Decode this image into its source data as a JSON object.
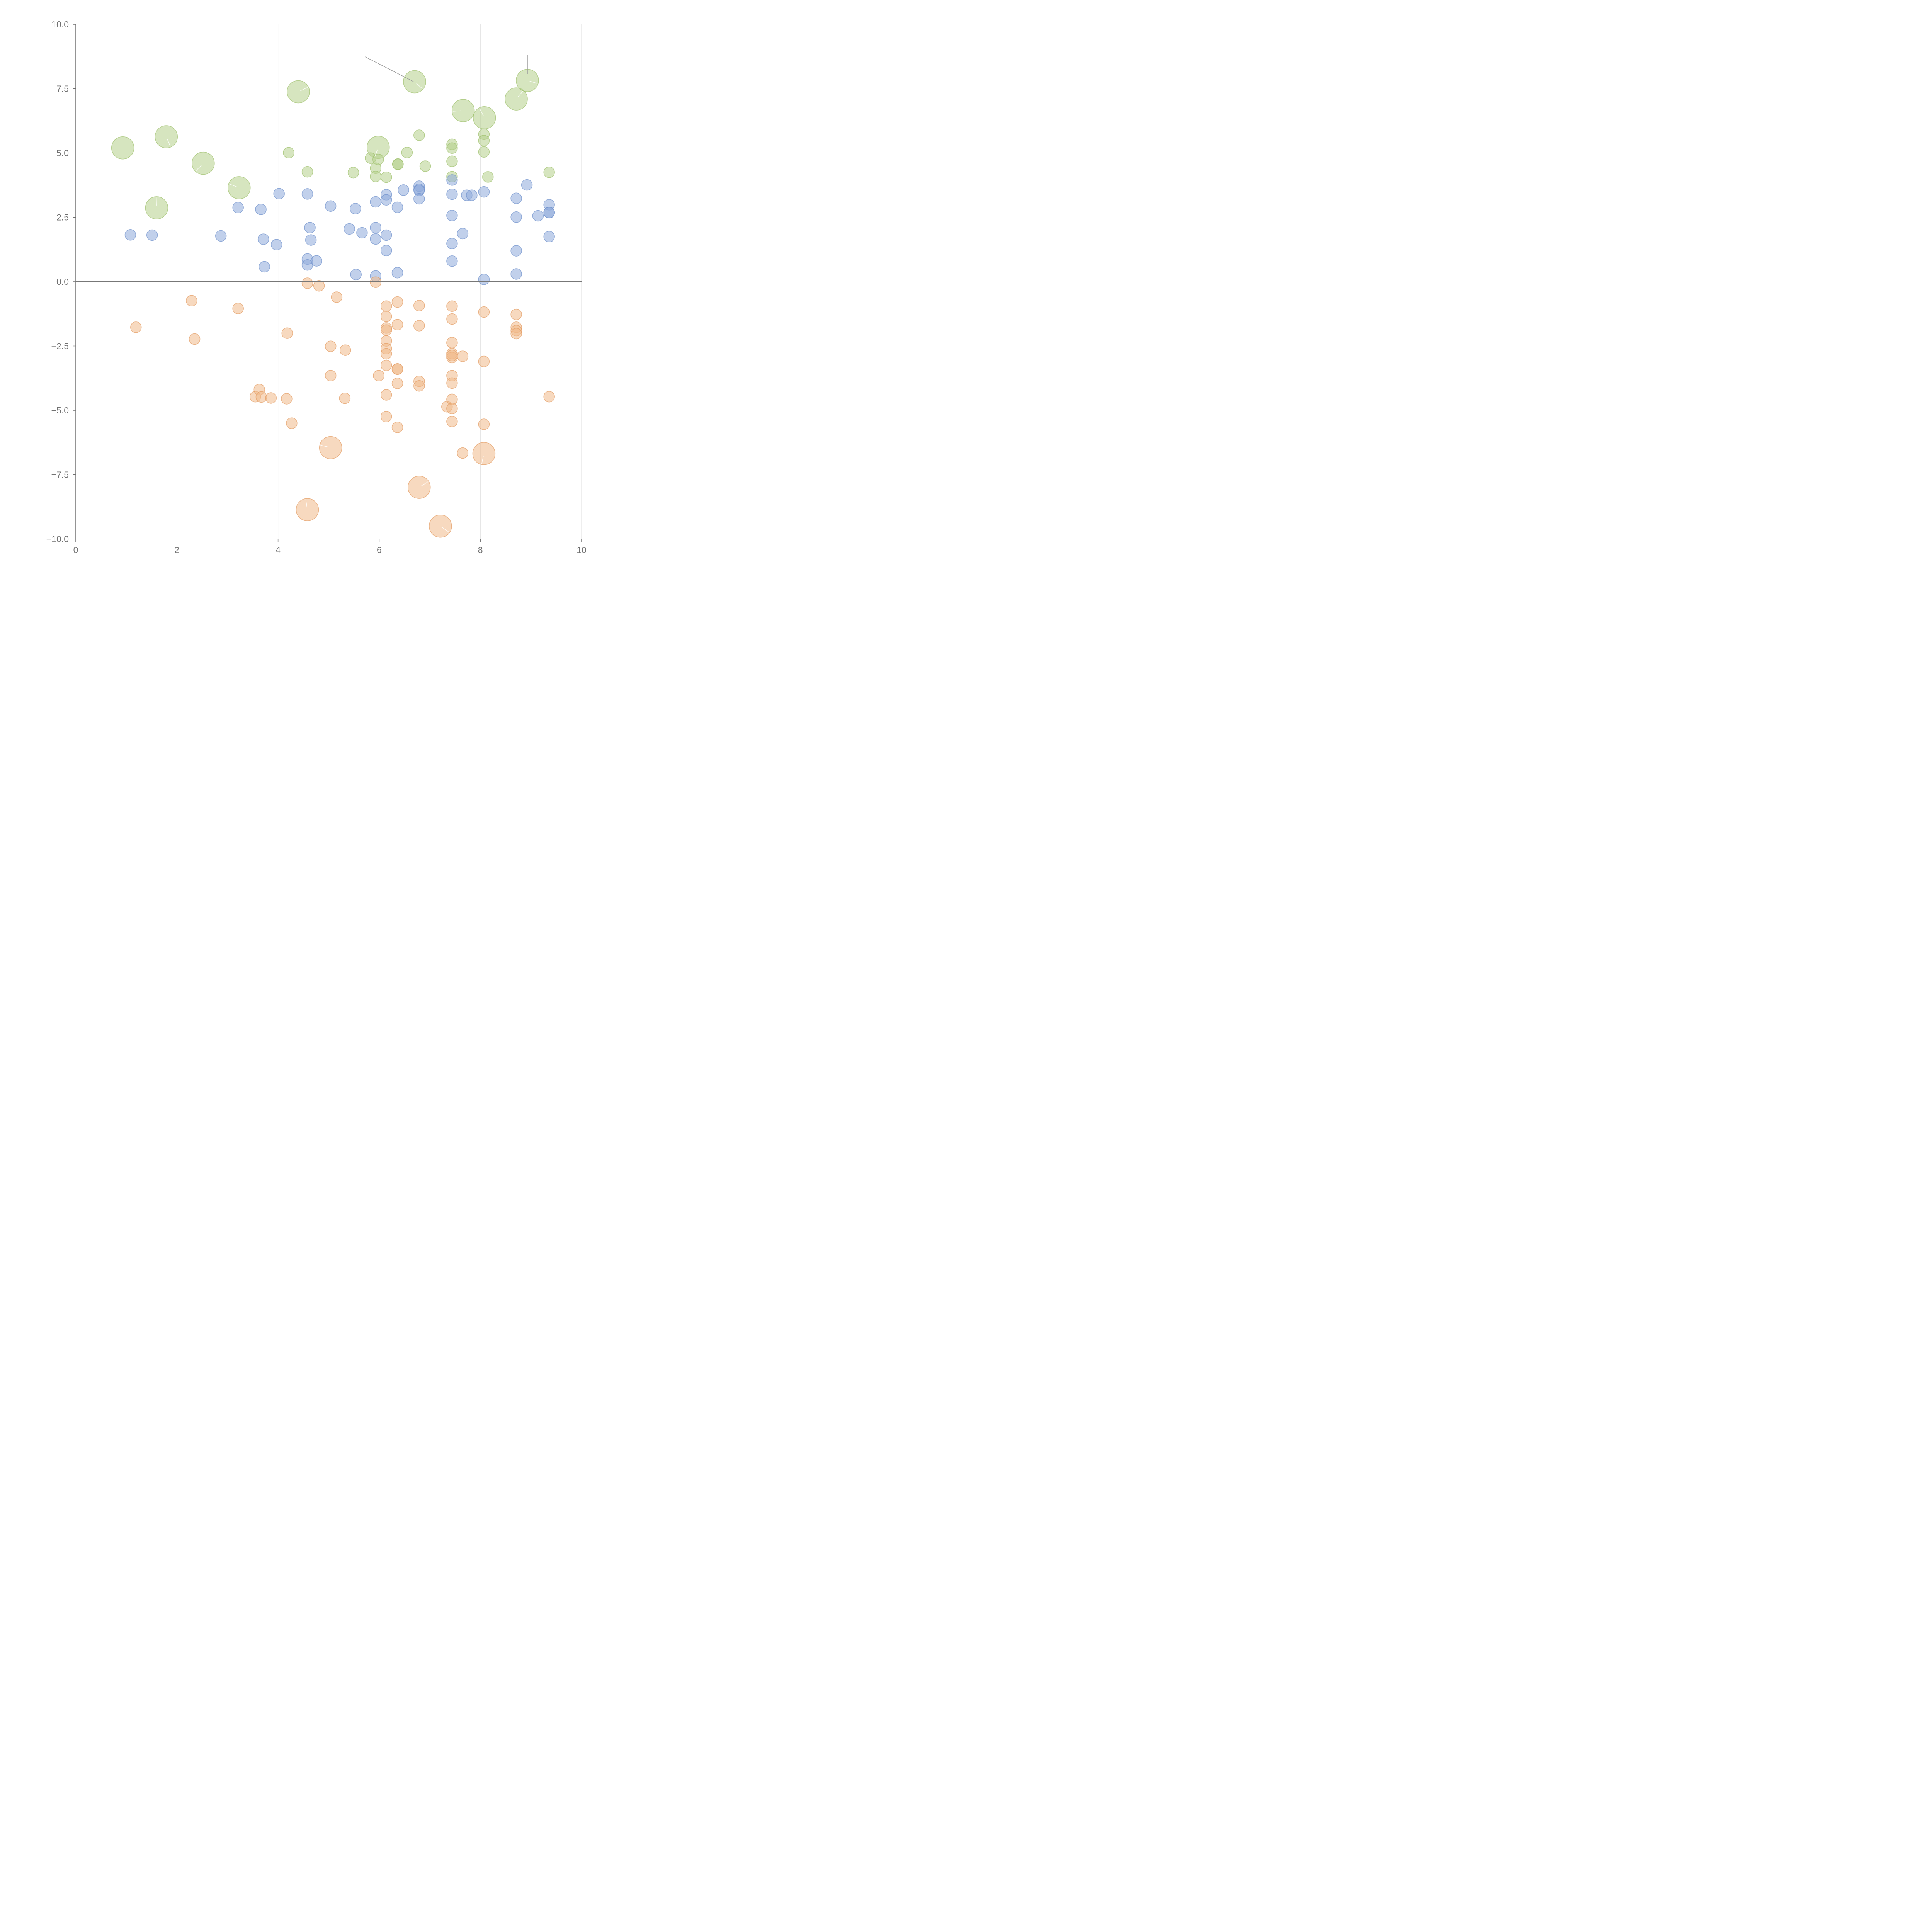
{
  "chart_data": {
    "type": "scatter",
    "title": "",
    "xlabel": "",
    "ylabel": "",
    "xlim": [
      0,
      10
    ],
    "ylim": [
      -10,
      10
    ],
    "x_ticks": [
      "0",
      "2",
      "4",
      "6",
      "8",
      "10"
    ],
    "y_ticks": [
      "10.0",
      "7.5",
      "5.0",
      "2.5",
      "0.0",
      "−2.5",
      "−5.0",
      "−7.5",
      "−10.0"
    ],
    "x_tick_values": [
      0,
      2,
      4,
      6,
      8,
      10
    ],
    "y_tick_values": [
      10,
      7.5,
      5,
      2.5,
      0,
      -2.5,
      -5,
      -7.5,
      -10
    ],
    "grid": "vertical",
    "reference_line_y": 0,
    "colors": {
      "green": "#b5d08a",
      "blue": "#8eaadb",
      "orange": "#f0b98a",
      "green_stroke": "#9cbf6a",
      "blue_stroke": "#6c8fcb",
      "orange_stroke": "#e29a5f"
    },
    "series": [
      {
        "color_key": "green",
        "points": [
          [
            0.93,
            5.2,
            2
          ],
          [
            1.79,
            5.63,
            2
          ],
          [
            2.52,
            4.6,
            2
          ],
          [
            3.23,
            3.65,
            2
          ],
          [
            1.6,
            2.87,
            2
          ],
          [
            4.4,
            7.38,
            2
          ],
          [
            6.7,
            7.77,
            2
          ],
          [
            5.98,
            5.22,
            2
          ],
          [
            7.66,
            6.65,
            2
          ],
          [
            8.08,
            6.37,
            2
          ],
          [
            8.71,
            7.1,
            2
          ],
          [
            8.93,
            7.82,
            2
          ],
          [
            4.21,
            5.01,
            1
          ],
          [
            4.58,
            4.27,
            1
          ],
          [
            5.49,
            4.24,
            1
          ],
          [
            5.83,
            4.8,
            1
          ],
          [
            5.93,
            4.41,
            1
          ],
          [
            5.93,
            4.09,
            1
          ],
          [
            5.98,
            4.75,
            1
          ],
          [
            6.14,
            4.06,
            1
          ],
          [
            6.37,
            4.57,
            1
          ],
          [
            6.37,
            4.56,
            1
          ],
          [
            6.55,
            5.02,
            1
          ],
          [
            6.79,
            5.69,
            1
          ],
          [
            6.91,
            4.49,
            1
          ],
          [
            7.44,
            5.34,
            1
          ],
          [
            7.44,
            5.19,
            1
          ],
          [
            7.44,
            4.68,
            1
          ],
          [
            7.44,
            4.08,
            1
          ],
          [
            8.07,
            5.73,
            1
          ],
          [
            8.07,
            5.48,
            1
          ],
          [
            8.07,
            5.04,
            1
          ],
          [
            8.15,
            4.07,
            1
          ],
          [
            9.36,
            4.25,
            1
          ]
        ]
      },
      {
        "color_key": "blue",
        "points": [
          [
            1.08,
            1.82,
            1
          ],
          [
            1.51,
            1.81,
            1
          ],
          [
            2.87,
            1.78,
            1
          ],
          [
            3.21,
            2.88,
            1
          ],
          [
            3.66,
            2.81,
            1
          ],
          [
            3.71,
            1.65,
            1
          ],
          [
            3.73,
            0.58,
            1
          ],
          [
            3.97,
            1.44,
            1
          ],
          [
            4.02,
            3.42,
            1
          ],
          [
            4.58,
            3.41,
            1
          ],
          [
            4.58,
            0.88,
            1
          ],
          [
            4.58,
            0.65,
            1
          ],
          [
            4.63,
            2.1,
            1
          ],
          [
            4.65,
            1.62,
            1
          ],
          [
            4.76,
            0.81,
            1
          ],
          [
            5.04,
            2.94,
            1
          ],
          [
            5.41,
            2.05,
            1
          ],
          [
            5.53,
            2.84,
            1
          ],
          [
            5.54,
            0.28,
            1
          ],
          [
            5.66,
            1.9,
            1
          ],
          [
            5.93,
            3.1,
            1
          ],
          [
            5.93,
            2.1,
            1
          ],
          [
            5.93,
            1.66,
            1
          ],
          [
            5.93,
            0.22,
            1
          ],
          [
            6.14,
            3.38,
            1
          ],
          [
            6.14,
            3.18,
            1
          ],
          [
            6.14,
            1.81,
            1
          ],
          [
            6.14,
            1.21,
            1
          ],
          [
            6.36,
            2.89,
            1
          ],
          [
            6.36,
            0.35,
            1
          ],
          [
            6.48,
            3.56,
            1
          ],
          [
            6.79,
            3.71,
            1
          ],
          [
            6.79,
            3.59,
            1
          ],
          [
            6.79,
            3.55,
            1
          ],
          [
            6.79,
            3.22,
            1
          ],
          [
            7.44,
            3.95,
            1
          ],
          [
            7.44,
            3.4,
            1
          ],
          [
            7.44,
            2.57,
            1
          ],
          [
            7.44,
            1.48,
            1
          ],
          [
            7.44,
            0.8,
            1
          ],
          [
            7.65,
            1.87,
            1
          ],
          [
            7.73,
            3.36,
            1
          ],
          [
            7.83,
            3.36,
            1
          ],
          [
            8.07,
            3.49,
            1
          ],
          [
            8.07,
            0.09,
            1
          ],
          [
            8.71,
            3.24,
            1
          ],
          [
            8.71,
            2.51,
            1
          ],
          [
            8.71,
            1.2,
            1
          ],
          [
            8.71,
            0.3,
            1
          ],
          [
            8.92,
            3.76,
            1
          ],
          [
            9.14,
            2.56,
            1
          ],
          [
            9.36,
            2.99,
            1
          ],
          [
            9.36,
            2.69,
            1
          ],
          [
            9.36,
            2.68,
            1
          ],
          [
            9.36,
            1.75,
            1
          ]
        ]
      },
      {
        "color_key": "orange",
        "points": [
          [
            1.19,
            -1.77,
            1
          ],
          [
            2.29,
            -0.74,
            1
          ],
          [
            2.35,
            -2.23,
            1
          ],
          [
            3.21,
            -1.04,
            1
          ],
          [
            3.55,
            -4.47,
            1
          ],
          [
            3.63,
            -4.19,
            1
          ],
          [
            3.67,
            -4.48,
            1
          ],
          [
            3.86,
            -4.52,
            1
          ],
          [
            4.17,
            -4.55,
            1
          ],
          [
            4.18,
            -2.0,
            1
          ],
          [
            4.27,
            -5.5,
            1
          ],
          [
            4.58,
            -0.06,
            1
          ],
          [
            4.81,
            -0.16,
            1
          ],
          [
            5.04,
            -2.51,
            1
          ],
          [
            5.04,
            -3.65,
            1
          ],
          [
            5.16,
            -0.6,
            1
          ],
          [
            5.32,
            -4.53,
            1
          ],
          [
            5.33,
            -2.66,
            1
          ],
          [
            5.93,
            -0.02,
            1
          ],
          [
            5.99,
            -3.65,
            1
          ],
          [
            6.14,
            -0.95,
            1
          ],
          [
            6.14,
            -1.35,
            1
          ],
          [
            6.14,
            -1.8,
            1
          ],
          [
            6.14,
            -1.88,
            1
          ],
          [
            6.14,
            -2.3,
            1
          ],
          [
            6.14,
            -2.6,
            1
          ],
          [
            6.14,
            -2.8,
            1
          ],
          [
            6.14,
            -3.25,
            1
          ],
          [
            6.14,
            -4.4,
            1
          ],
          [
            6.14,
            -5.24,
            1
          ],
          [
            6.36,
            -0.79,
            1
          ],
          [
            6.36,
            -1.67,
            1
          ],
          [
            6.36,
            -3.39,
            1
          ],
          [
            6.36,
            -3.4,
            1
          ],
          [
            6.36,
            -3.95,
            1
          ],
          [
            6.36,
            -5.66,
            1
          ],
          [
            6.79,
            -0.93,
            1
          ],
          [
            6.79,
            -1.71,
            1
          ],
          [
            6.79,
            -3.87,
            1
          ],
          [
            6.79,
            -4.05,
            1
          ],
          [
            7.34,
            -4.86,
            1
          ],
          [
            7.44,
            -0.95,
            1
          ],
          [
            7.44,
            -1.45,
            1
          ],
          [
            7.44,
            -2.37,
            1
          ],
          [
            7.44,
            -2.79,
            1
          ],
          [
            7.44,
            -2.95,
            1
          ],
          [
            7.44,
            -2.87,
            1
          ],
          [
            7.44,
            -3.65,
            1
          ],
          [
            7.44,
            -3.94,
            1
          ],
          [
            7.44,
            -4.57,
            1
          ],
          [
            7.44,
            -4.93,
            1
          ],
          [
            7.44,
            -5.43,
            1
          ],
          [
            7.65,
            -2.9,
            1
          ],
          [
            7.65,
            -6.66,
            1
          ],
          [
            8.07,
            -1.18,
            1
          ],
          [
            8.07,
            -3.1,
            1
          ],
          [
            8.07,
            -5.54,
            1
          ],
          [
            8.71,
            -1.27,
            1
          ],
          [
            8.71,
            -1.77,
            1
          ],
          [
            8.71,
            -1.9,
            1
          ],
          [
            8.71,
            -2.02,
            1
          ],
          [
            9.36,
            -4.47,
            1
          ],
          [
            5.04,
            -6.45,
            2
          ],
          [
            4.58,
            -8.86,
            2
          ],
          [
            6.79,
            -7.99,
            2
          ],
          [
            7.21,
            -9.5,
            2
          ],
          [
            8.07,
            -6.68,
            2
          ]
        ]
      }
    ]
  }
}
